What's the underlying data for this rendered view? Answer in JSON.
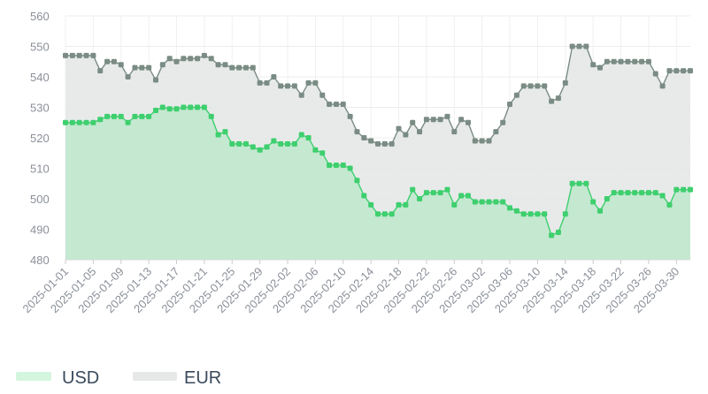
{
  "chart_data": {
    "type": "area",
    "x": [
      "2025-01-01",
      "2025-01-02",
      "2025-01-03",
      "2025-01-04",
      "2025-01-05",
      "2025-01-06",
      "2025-01-07",
      "2025-01-08",
      "2025-01-09",
      "2025-01-10",
      "2025-01-11",
      "2025-01-12",
      "2025-01-13",
      "2025-01-14",
      "2025-01-15",
      "2025-01-16",
      "2025-01-17",
      "2025-01-18",
      "2025-01-19",
      "2025-01-20",
      "2025-01-21",
      "2025-01-22",
      "2025-01-23",
      "2025-01-24",
      "2025-01-25",
      "2025-01-26",
      "2025-01-27",
      "2025-01-28",
      "2025-01-29",
      "2025-01-30",
      "2025-01-31",
      "2025-02-01",
      "2025-02-02",
      "2025-02-03",
      "2025-02-04",
      "2025-02-05",
      "2025-02-06",
      "2025-02-07",
      "2025-02-08",
      "2025-02-09",
      "2025-02-10",
      "2025-02-11",
      "2025-02-12",
      "2025-02-13",
      "2025-02-14",
      "2025-02-15",
      "2025-02-16",
      "2025-02-17",
      "2025-02-18",
      "2025-02-19",
      "2025-02-20",
      "2025-02-21",
      "2025-02-22",
      "2025-02-23",
      "2025-02-24",
      "2025-02-25",
      "2025-02-26",
      "2025-02-27",
      "2025-02-28",
      "2025-03-01",
      "2025-03-02",
      "2025-03-03",
      "2025-03-04",
      "2025-03-05",
      "2025-03-06",
      "2025-03-07",
      "2025-03-08",
      "2025-03-09",
      "2025-03-10",
      "2025-03-11",
      "2025-03-12",
      "2025-03-13",
      "2025-03-14",
      "2025-03-15",
      "2025-03-16",
      "2025-03-17",
      "2025-03-18",
      "2025-03-19",
      "2025-03-20",
      "2025-03-21",
      "2025-03-22",
      "2025-03-23",
      "2025-03-24",
      "2025-03-25",
      "2025-03-26",
      "2025-03-27",
      "2025-03-28",
      "2025-03-29",
      "2025-03-30",
      "2025-03-31",
      "2025-04-01"
    ],
    "x_tick_labels": [
      "2025-01-01",
      "2025-01-05",
      "2025-01-09",
      "2025-01-13",
      "2025-01-17",
      "2025-01-21",
      "2025-01-25",
      "2025-01-29",
      "2025-02-02",
      "2025-02-06",
      "2025-02-10",
      "2025-02-14",
      "2025-02-18",
      "2025-02-22",
      "2025-02-26",
      "2025-03-02",
      "2025-03-06",
      "2025-03-10",
      "2025-03-14",
      "2025-03-18",
      "2025-03-22",
      "2025-03-26",
      "2025-03-30"
    ],
    "y_ticks": [
      480,
      490,
      500,
      510,
      520,
      530,
      540,
      550,
      560
    ],
    "ylim": [
      480,
      560
    ],
    "grid": true,
    "legend_position": "bottom-left",
    "series": [
      {
        "name": "USD",
        "color": "#3ecf6e",
        "fill": "#c2e8cf",
        "legend_color": "#d4f5de",
        "values": [
          525,
          525,
          525,
          525,
          525,
          526,
          527,
          527,
          527,
          525,
          527,
          527,
          527,
          529,
          530,
          529.5,
          529.5,
          530,
          530,
          530,
          530,
          527,
          521,
          522,
          518,
          518,
          518,
          517,
          516,
          517,
          519,
          518,
          518,
          518,
          521,
          520,
          516,
          515,
          511,
          511,
          511,
          510,
          506,
          501,
          498,
          495,
          495,
          495,
          498,
          498,
          503,
          500,
          502,
          502,
          502,
          503,
          498,
          501,
          501,
          499,
          499,
          499,
          499,
          499,
          497,
          496,
          495,
          495,
          495,
          495,
          488,
          489,
          495,
          505,
          505,
          505,
          499,
          496,
          500,
          502,
          502,
          502,
          502,
          502,
          502,
          502,
          501,
          498,
          503,
          503,
          503
        ]
      },
      {
        "name": "EUR",
        "color": "#7a8c84",
        "fill": "#e6e8e8",
        "legend_color": "#e6e8e8",
        "values": [
          547,
          547,
          547,
          547,
          547,
          542,
          545,
          545,
          544,
          540,
          543,
          543,
          543,
          539,
          544,
          546,
          545,
          546,
          546,
          546,
          547,
          546,
          544,
          544,
          543,
          543,
          543,
          543,
          538,
          538,
          540,
          537,
          537,
          537,
          534,
          538,
          538,
          534,
          531,
          531,
          531,
          527,
          522,
          520,
          519,
          518,
          518,
          518,
          523,
          521,
          525,
          522,
          526,
          526,
          526,
          527,
          522,
          526,
          525,
          519,
          519,
          519,
          522,
          525,
          531,
          534,
          537,
          537,
          537,
          537,
          532,
          533,
          538,
          550,
          550,
          550,
          544,
          543,
          545,
          545,
          545,
          545,
          545,
          545,
          545,
          541,
          537,
          542,
          542,
          542,
          542
        ]
      }
    ]
  }
}
